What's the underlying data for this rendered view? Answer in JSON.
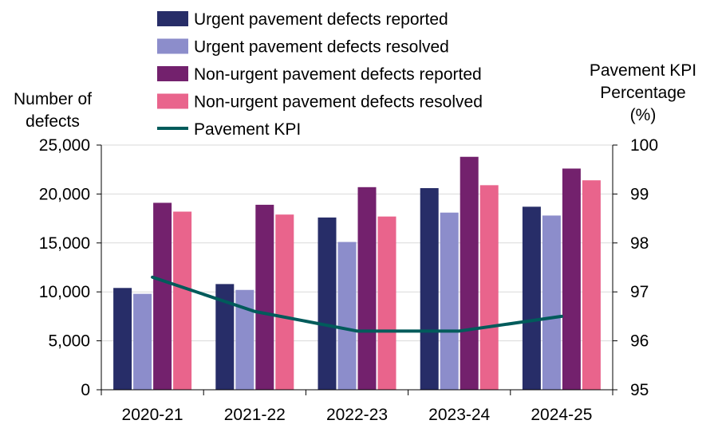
{
  "chart_data": {
    "type": "bar",
    "categories": [
      "2020-21",
      "2021-22",
      "2022-23",
      "2023-24",
      "2024-25"
    ],
    "series": [
      {
        "name": "Urgent pavement defects reported",
        "color": "#272D68",
        "values": [
          10400,
          10800,
          17600,
          20600,
          18700
        ]
      },
      {
        "name": "Urgent pavement defects resolved",
        "color": "#8C8DCB",
        "values": [
          9800,
          10200,
          15100,
          18100,
          17800
        ]
      },
      {
        "name": "Non-urgent pavement defects reported",
        "color": "#73216D",
        "values": [
          19100,
          18900,
          20700,
          23800,
          22600
        ]
      },
      {
        "name": "Non-urgent pavement defects resolved",
        "color": "#E9648C",
        "values": [
          18200,
          17900,
          17700,
          20900,
          21400
        ]
      }
    ],
    "line_series": {
      "name": "Pavement KPI",
      "color": "#005B5B",
      "axis": "right",
      "values": [
        97.3,
        96.6,
        96.2,
        96.2,
        96.5
      ]
    },
    "ylabel": "Number of defects",
    "ylabel_lines": [
      "Number of",
      "defects"
    ],
    "ylim": [
      0,
      25000
    ],
    "yticks": [
      0,
      5000,
      10000,
      15000,
      20000,
      25000
    ],
    "ytick_labels": [
      "0",
      "5,000",
      "10,000",
      "15,000",
      "20,000",
      "25,000"
    ],
    "y2label": "Pavement KPI Percentage (%)",
    "y2label_lines": [
      "Pavement KPI",
      "Percentage",
      "(%)"
    ],
    "y2lim": [
      95,
      100
    ],
    "y2ticks": [
      95,
      96,
      97,
      98,
      99,
      100
    ],
    "y2tick_labels": [
      "95",
      "96",
      "97",
      "98",
      "99",
      "100"
    ],
    "grid": true,
    "legend_position": "top-center"
  }
}
